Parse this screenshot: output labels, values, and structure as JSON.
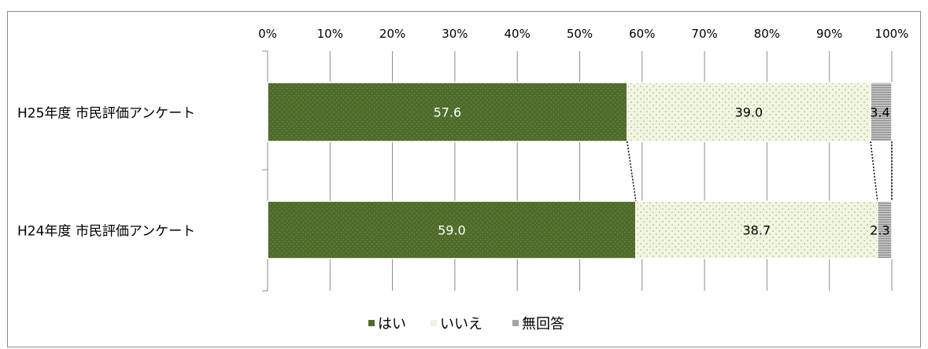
{
  "chart_data": {
    "type": "bar",
    "orientation": "horizontal",
    "stacked": "percent",
    "categories": [
      "H25年度 市民評価アンケート",
      "H24年度 市民評価アンケート"
    ],
    "series": [
      {
        "name": "はい",
        "values": [
          57.6,
          59.0
        ],
        "color": "#4e6b2a"
      },
      {
        "name": "いいえ",
        "values": [
          39.0,
          38.7
        ],
        "color": "#eef3dc"
      },
      {
        "name": "無回答",
        "values": [
          3.4,
          2.3
        ],
        "color": "#a6a6a6"
      }
    ],
    "xlim": [
      0,
      100
    ],
    "xticks": [
      "0%",
      "10%",
      "20%",
      "30%",
      "40%",
      "50%",
      "60%",
      "70%",
      "80%",
      "90%",
      "100%"
    ],
    "grid": true,
    "series_lines": true,
    "legend_position": "bottom"
  }
}
